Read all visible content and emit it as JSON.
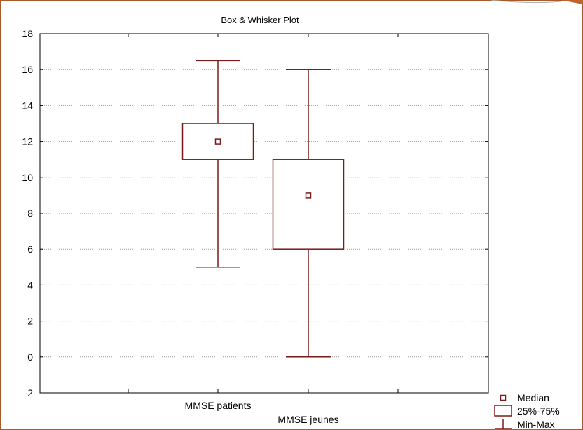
{
  "chart_data": {
    "type": "box",
    "title": "Box & Whisker Plot",
    "xlabel": "",
    "ylabel": "",
    "ylim": [
      -2,
      18
    ],
    "yticks": [
      -2,
      0,
      2,
      4,
      6,
      8,
      10,
      12,
      14,
      16,
      18
    ],
    "grid": true,
    "legend_position": "bottom-right",
    "categories": [
      "MMSE patients",
      "MMSE jeunes"
    ],
    "boxes": [
      {
        "category": "MMSE patients",
        "min": 5,
        "q1": 11,
        "median": 12,
        "q3": 13,
        "max": 16.5
      },
      {
        "category": "MMSE jeunes",
        "min": 0,
        "q1": 6,
        "median": 9,
        "q3": 11,
        "max": 16
      }
    ],
    "legend": [
      {
        "symbol": "median",
        "label": "Median"
      },
      {
        "symbol": "box",
        "label": "25%-75%"
      },
      {
        "symbol": "whisker",
        "label": "Min-Max"
      }
    ],
    "colors": {
      "mark": "#7a1a1a",
      "grid": "#9a9a9a",
      "axis": "#000000",
      "frame": "#a85a2a",
      "accent": "#c0642a"
    }
  }
}
